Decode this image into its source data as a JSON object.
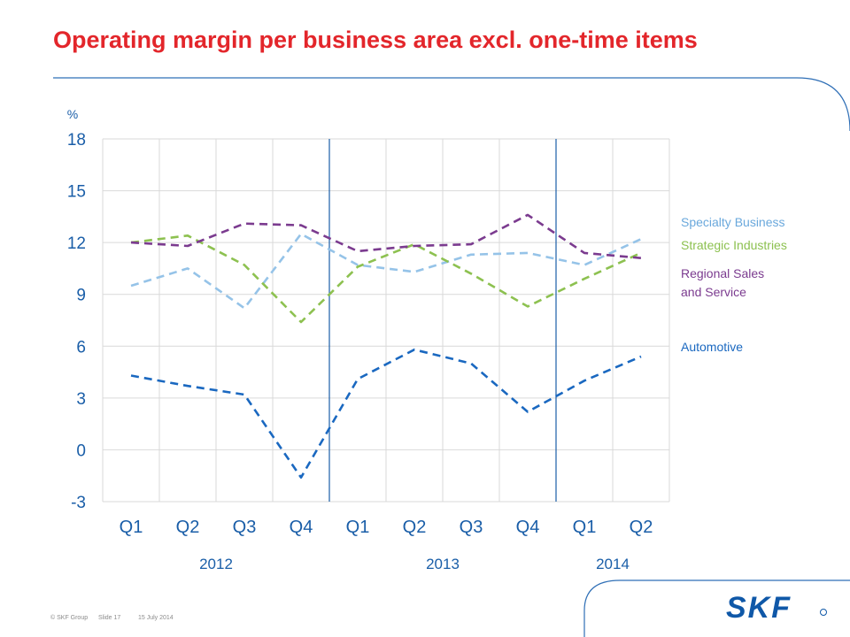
{
  "slide": {
    "title": "Operating margin per business area excl. one-time items",
    "footer": {
      "copyright": "© SKF Group",
      "slide_number": "Slide 17",
      "date": "15 July 2014"
    },
    "logo_text": "SKF",
    "colors": {
      "title": "#e3262b",
      "brand_blue": "#0f58a8",
      "decor_line": "#2f6fb6"
    }
  },
  "chart_data": {
    "type": "line",
    "title": "Operating margin per business area excl. one-time items",
    "ylabel": "%",
    "xlabel": "",
    "ylim": [
      -3,
      18
    ],
    "yticks": [
      18,
      15,
      12,
      9,
      6,
      3,
      0,
      -3
    ],
    "grid": true,
    "legend_position": "right",
    "categories": [
      "Q1",
      "Q2",
      "Q3",
      "Q4",
      "Q1",
      "Q2",
      "Q3",
      "Q4",
      "Q1",
      "Q2"
    ],
    "years": [
      {
        "label": "2012",
        "from": 0,
        "to": 3
      },
      {
        "label": "2013",
        "from": 4,
        "to": 7
      },
      {
        "label": "2014",
        "from": 8,
        "to": 9
      }
    ],
    "series": [
      {
        "name": "Specialty Business",
        "color": "#95c3e8",
        "values": [
          9.5,
          10.5,
          8.2,
          12.5,
          10.7,
          10.3,
          11.3,
          11.4,
          10.7,
          12.2
        ]
      },
      {
        "name": "Strategic Industries",
        "color": "#8dc150",
        "values": [
          12.0,
          12.4,
          10.7,
          7.4,
          10.6,
          11.9,
          10.2,
          8.3,
          9.9,
          11.4
        ]
      },
      {
        "name": "Regional Sales and Service",
        "color": "#7b3b8f",
        "values": [
          12.0,
          11.8,
          13.1,
          13.0,
          11.5,
          11.8,
          11.9,
          13.6,
          11.4,
          11.1
        ]
      },
      {
        "name": "Automotive",
        "color": "#1a68c0",
        "values": [
          4.3,
          3.7,
          3.2,
          -1.6,
          4.1,
          5.8,
          5.0,
          2.2,
          4.0,
          5.4
        ]
      }
    ],
    "legend": [
      {
        "lines": [
          "Specialty Business"
        ],
        "color": "#6aa8dc"
      },
      {
        "lines": [
          "Strategic Industries"
        ],
        "color": "#8dc150"
      },
      {
        "lines": [
          "Regional Sales",
          "and Service"
        ],
        "color": "#7b3b8f"
      },
      {
        "lines": [
          "Automotive"
        ],
        "color": "#1a68c0"
      }
    ]
  }
}
